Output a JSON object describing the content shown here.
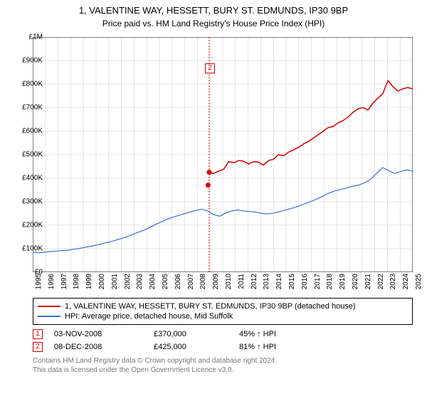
{
  "title": "1, VALENTINE WAY, HESSETT, BURY ST. EDMUNDS, IP30 9BP",
  "subtitle": "Price paid vs. HM Land Registry's House Price Index (HPI)",
  "chart": {
    "type": "line",
    "background_color": "#ffffff",
    "grid_color": "#cccccc",
    "axis_color": "#000000",
    "label_fontsize": 10,
    "x_start": 1995,
    "x_end": 2025,
    "y_min": 0,
    "y_max": 1000000,
    "y_ticks": [
      {
        "v": 0,
        "label": "£0"
      },
      {
        "v": 100000,
        "label": "£100K"
      },
      {
        "v": 200000,
        "label": "£200K"
      },
      {
        "v": 300000,
        "label": "£300K"
      },
      {
        "v": 400000,
        "label": "£400K"
      },
      {
        "v": 500000,
        "label": "£500K"
      },
      {
        "v": 600000,
        "label": "£600K"
      },
      {
        "v": 700000,
        "label": "£700K"
      },
      {
        "v": 800000,
        "label": "£800K"
      },
      {
        "v": 900000,
        "label": "£900K"
      },
      {
        "v": 1000000,
        "label": "£1M"
      }
    ],
    "x_ticks": [
      1995,
      1996,
      1997,
      1998,
      1999,
      2000,
      2001,
      2002,
      2003,
      2004,
      2005,
      2006,
      2007,
      2008,
      2009,
      2010,
      2011,
      2012,
      2013,
      2014,
      2015,
      2016,
      2017,
      2018,
      2019,
      2020,
      2021,
      2022,
      2023,
      2024,
      2025
    ],
    "series": [
      {
        "name": "price_paid",
        "color": "#d40000",
        "width": 1.5,
        "start_year": 2008.9,
        "values": [
          425,
          420,
          430,
          438,
          470,
          465,
          475,
          472,
          460,
          470,
          468,
          455,
          475,
          480,
          500,
          495,
          510,
          520,
          530,
          545,
          555,
          570,
          585,
          600,
          615,
          620,
          635,
          645,
          660,
          680,
          695,
          700,
          690,
          720,
          740,
          760,
          815,
          790,
          770,
          780,
          785,
          780
        ]
      },
      {
        "name": "hpi",
        "color": "#3a6fd8",
        "width": 1.2,
        "start_year": 1995,
        "values": [
          85,
          82,
          85,
          88,
          90,
          92,
          94,
          98,
          102,
          108,
          112,
          118,
          125,
          130,
          138,
          145,
          155,
          165,
          175,
          185,
          198,
          210,
          222,
          232,
          240,
          248,
          255,
          262,
          268,
          260,
          245,
          238,
          252,
          260,
          265,
          260,
          258,
          255,
          250,
          248,
          252,
          258,
          265,
          272,
          280,
          290,
          300,
          310,
          322,
          335,
          345,
          352,
          358,
          365,
          370,
          380,
          395,
          420,
          445,
          432,
          420,
          428,
          435,
          430
        ]
      }
    ],
    "sale_markers": [
      {
        "n": "1",
        "year": 2008.84,
        "value": 370000
      },
      {
        "n": "2",
        "year": 2008.93,
        "value": 425000
      }
    ],
    "callout": {
      "n": "2",
      "year": 2008.93,
      "y_label_value": 870000,
      "dash_color": "#d40000"
    }
  },
  "legend": {
    "items": [
      {
        "color": "#d40000",
        "label": "1, VALENTINE WAY, HESSETT, BURY ST. EDMUNDS, IP30 9BP (detached house)"
      },
      {
        "color": "#3a6fd8",
        "label": "HPI: Average price, detached house, Mid Suffolk"
      }
    ]
  },
  "sales": [
    {
      "n": "1",
      "date": "03-NOV-2008",
      "price": "£370,000",
      "pct": "45% ↑ HPI"
    },
    {
      "n": "2",
      "date": "08-DEC-2008",
      "price": "£425,000",
      "pct": "81% ↑ HPI"
    }
  ],
  "footer_line1": "Contains HM Land Registry data © Crown copyright and database right 2024.",
  "footer_line2": "This data is licensed under the Open Government Licence v3.0."
}
